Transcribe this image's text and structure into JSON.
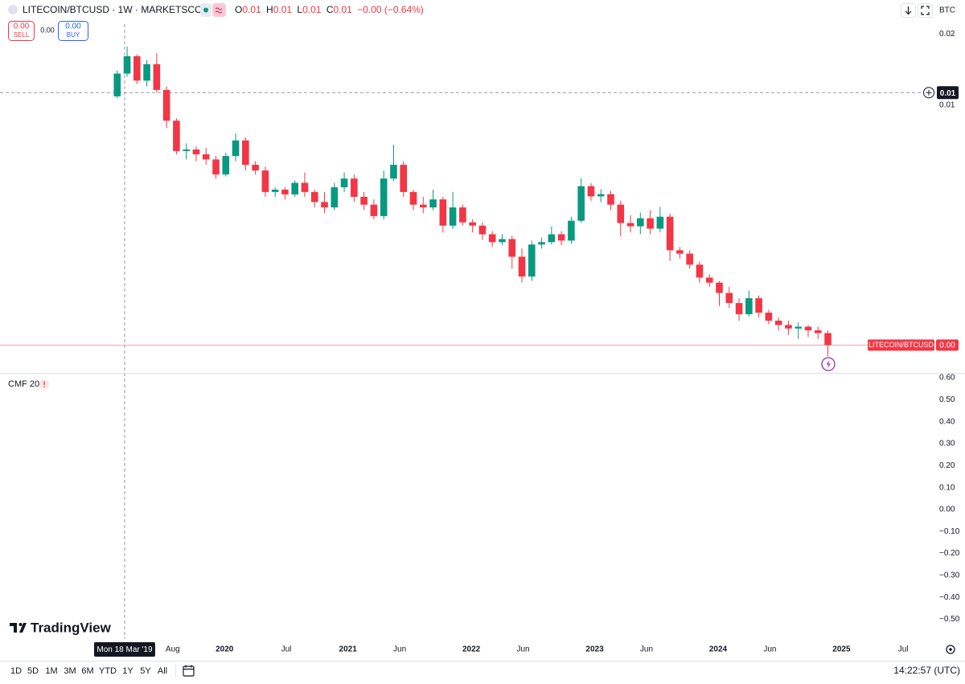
{
  "header": {
    "symbol": "LITECOIN/BTCUSD · 1W · MARKETSCOM",
    "ohlc": [
      {
        "label": "O",
        "value": "0.01"
      },
      {
        "label": "H",
        "value": "0.01"
      },
      {
        "label": "L",
        "value": "0.01"
      },
      {
        "label": "C",
        "value": "0.01"
      }
    ],
    "change": "−0.00 (−0.64%)"
  },
  "trade": {
    "sell_price": "0.00",
    "sell_label": "SELL",
    "spread": "0.00",
    "buy_price": "0.00",
    "buy_label": "BUY"
  },
  "currency": "BTC",
  "logo": "TradingView",
  "ranges": [
    "1D",
    "5D",
    "1M",
    "3M",
    "6M",
    "YTD",
    "1Y",
    "5Y",
    "All"
  ],
  "clock": "14:22:57 (UTC)",
  "chart_data": [
    {
      "type": "candlestick",
      "log_scale": true,
      "up_color": "#089981",
      "down_color": "#f23645",
      "x": [
        2019.13,
        2019.21,
        2019.29,
        2019.37,
        2019.45,
        2019.53,
        2019.61,
        2019.69,
        2019.77,
        2019.85,
        2019.93,
        2020.01,
        2020.09,
        2020.17,
        2020.25,
        2020.33,
        2020.41,
        2020.49,
        2020.57,
        2020.65,
        2020.73,
        2020.81,
        2020.89,
        2020.97,
        2021.05,
        2021.13,
        2021.21,
        2021.29,
        2021.37,
        2021.45,
        2021.53,
        2021.61,
        2021.69,
        2021.77,
        2021.85,
        2021.93,
        2022.01,
        2022.09,
        2022.17,
        2022.25,
        2022.33,
        2022.41,
        2022.49,
        2022.57,
        2022.65,
        2022.73,
        2022.81,
        2022.89,
        2022.97,
        2023.05,
        2023.13,
        2023.21,
        2023.29,
        2023.37,
        2023.45,
        2023.53,
        2023.61,
        2023.69,
        2023.77,
        2023.85,
        2023.93,
        2024.01,
        2024.09,
        2024.17,
        2024.25,
        2024.33,
        2024.41,
        2024.49,
        2024.57,
        2024.65,
        2024.73,
        2024.81,
        2024.89
      ],
      "open": [
        0.0109,
        0.0136,
        0.0161,
        0.0127,
        0.0149,
        0.0116,
        0.0086,
        0.0064,
        0.0065,
        0.0062,
        0.0059,
        0.0051,
        0.0061,
        0.0071,
        0.0056,
        0.0053,
        0.0043,
        0.0044,
        0.0042,
        0.0047,
        0.0043,
        0.0039,
        0.0037,
        0.0045,
        0.0049,
        0.0041,
        0.0038,
        0.0034,
        0.0049,
        0.0056,
        0.0043,
        0.0038,
        0.0037,
        0.004,
        0.0031,
        0.0037,
        0.0032,
        0.0031,
        0.00285,
        0.00264,
        0.00272,
        0.00229,
        0.00189,
        0.00258,
        0.00264,
        0.00285,
        0.00268,
        0.00325,
        0.00455,
        0.00412,
        0.00421,
        0.0038,
        0.00318,
        0.00308,
        0.00333,
        0.00301,
        0.00338,
        0.00244,
        0.00236,
        0.00212,
        0.00187,
        0.00178,
        0.00161,
        0.00146,
        0.00131,
        0.00153,
        0.00133,
        0.00123,
        0.00118,
        0.00114,
        0.00116,
        0.00112,
        0.00109
      ],
      "high": [
        0.014,
        0.0177,
        0.0164,
        0.0155,
        0.0166,
        0.012,
        0.0088,
        0.0069,
        0.0067,
        0.0066,
        0.0061,
        0.0063,
        0.0076,
        0.0073,
        0.0058,
        0.0055,
        0.0045,
        0.0045,
        0.0048,
        0.0052,
        0.0044,
        0.0043,
        0.0047,
        0.0052,
        0.0051,
        0.0043,
        0.004,
        0.0053,
        0.0068,
        0.0058,
        0.0044,
        0.0041,
        0.0044,
        0.0041,
        0.0043,
        0.0038,
        0.0033,
        0.0032,
        0.00294,
        0.00285,
        0.00281,
        0.00248,
        0.00268,
        0.00276,
        0.00308,
        0.00294,
        0.00338,
        0.00492,
        0.00469,
        0.00442,
        0.00435,
        0.00395,
        0.00343,
        0.00352,
        0.0036,
        0.00372,
        0.00349,
        0.00252,
        0.00244,
        0.00219,
        0.00193,
        0.00181,
        0.00171,
        0.00153,
        0.00165,
        0.00157,
        0.00137,
        0.00127,
        0.00123,
        0.00121,
        0.00118,
        0.00116,
        0.00112
      ],
      "low": [
        0.0107,
        0.0132,
        0.0123,
        0.012,
        0.0113,
        0.008,
        0.0062,
        0.0059,
        0.0058,
        0.0056,
        0.0049,
        0.005,
        0.0058,
        0.0053,
        0.0051,
        0.0041,
        0.0041,
        0.004,
        0.0041,
        0.0041,
        0.0037,
        0.0035,
        0.0036,
        0.0043,
        0.0039,
        0.0036,
        0.0033,
        0.0033,
        0.0048,
        0.0041,
        0.0036,
        0.0035,
        0.0036,
        0.0029,
        0.003,
        0.0031,
        0.0029,
        0.0027,
        0.00252,
        0.00256,
        0.00204,
        0.00178,
        0.00181,
        0.00248,
        0.00258,
        0.00256,
        0.0026,
        0.00318,
        0.00395,
        0.00389,
        0.0036,
        0.00279,
        0.0029,
        0.00285,
        0.00285,
        0.0029,
        0.0022,
        0.00225,
        0.00204,
        0.00178,
        0.00171,
        0.00142,
        0.00139,
        0.00123,
        0.00128,
        0.00127,
        0.00119,
        0.00112,
        0.00107,
        0.00103,
        0.00105,
        0.00103,
        0.00087
      ],
      "close": [
        0.0136,
        0.0161,
        0.0127,
        0.0149,
        0.0116,
        0.0086,
        0.0064,
        0.0065,
        0.0062,
        0.0059,
        0.0051,
        0.0061,
        0.0071,
        0.0056,
        0.0053,
        0.0043,
        0.0044,
        0.0042,
        0.0047,
        0.0043,
        0.0039,
        0.0037,
        0.0045,
        0.0049,
        0.0041,
        0.0038,
        0.0034,
        0.0049,
        0.0056,
        0.0043,
        0.0038,
        0.0037,
        0.004,
        0.0031,
        0.0037,
        0.0032,
        0.0031,
        0.00285,
        0.00264,
        0.00272,
        0.00229,
        0.00189,
        0.00258,
        0.00264,
        0.00285,
        0.00268,
        0.00325,
        0.00455,
        0.00412,
        0.00421,
        0.0038,
        0.00318,
        0.00308,
        0.00333,
        0.00301,
        0.00338,
        0.00244,
        0.00236,
        0.00212,
        0.00187,
        0.00178,
        0.00161,
        0.00146,
        0.00131,
        0.00153,
        0.00133,
        0.00123,
        0.00118,
        0.00114,
        0.00116,
        0.00112,
        0.00109,
        0.00097
      ],
      "xlim": [
        2018.18,
        2025.61
      ],
      "xticks": [
        {
          "value": 2019.58,
          "label": "Aug"
        },
        2020,
        {
          "value": 2020.5,
          "label": "Jul"
        },
        2021,
        {
          "value": 2021.42,
          "label": "Jun"
        },
        2022,
        {
          "value": 2022.42,
          "label": "Jun"
        },
        2023,
        {
          "value": 2023.42,
          "label": "Jun"
        },
        2024,
        {
          "value": 2024.42,
          "label": "Jun"
        },
        2025,
        {
          "value": 2025.5,
          "label": "Jul"
        }
      ],
      "ylim": [
        0.00074,
        0.022
      ],
      "yticks": [
        0.02,
        0.01
      ],
      "crosshair": {
        "x": {
          "value": 2019.19,
          "label": "Mon 18 Mar '19"
        },
        "y": {
          "value": 0.0113,
          "label": "0.01"
        }
      },
      "last_price": {
        "name": "LITECOIN/BTCUSD",
        "value": 0.00097,
        "label": "0.00",
        "color": "#f23645"
      }
    },
    {
      "type": "indicator",
      "title": "CMF 20",
      "ylim": [
        -0.59,
        0.615
      ],
      "yticks": [
        {
          "value": 0.6,
          "label": "0.60"
        },
        {
          "value": 0.5,
          "label": "0.50"
        },
        {
          "value": 0.4,
          "label": "0.40"
        },
        {
          "value": 0.3,
          "label": "0.30"
        },
        {
          "value": 0.2,
          "label": "0.20"
        },
        {
          "value": 0.1,
          "label": "0.10"
        },
        {
          "value": 0,
          "label": "0.00"
        },
        {
          "value": -0.1,
          "label": "−0.10"
        },
        {
          "value": -0.2,
          "label": "−0.20"
        },
        {
          "value": -0.3,
          "label": "−0.30"
        },
        {
          "value": -0.4,
          "label": "−0.40"
        },
        {
          "value": -0.5,
          "label": "−0.50"
        }
      ]
    }
  ]
}
